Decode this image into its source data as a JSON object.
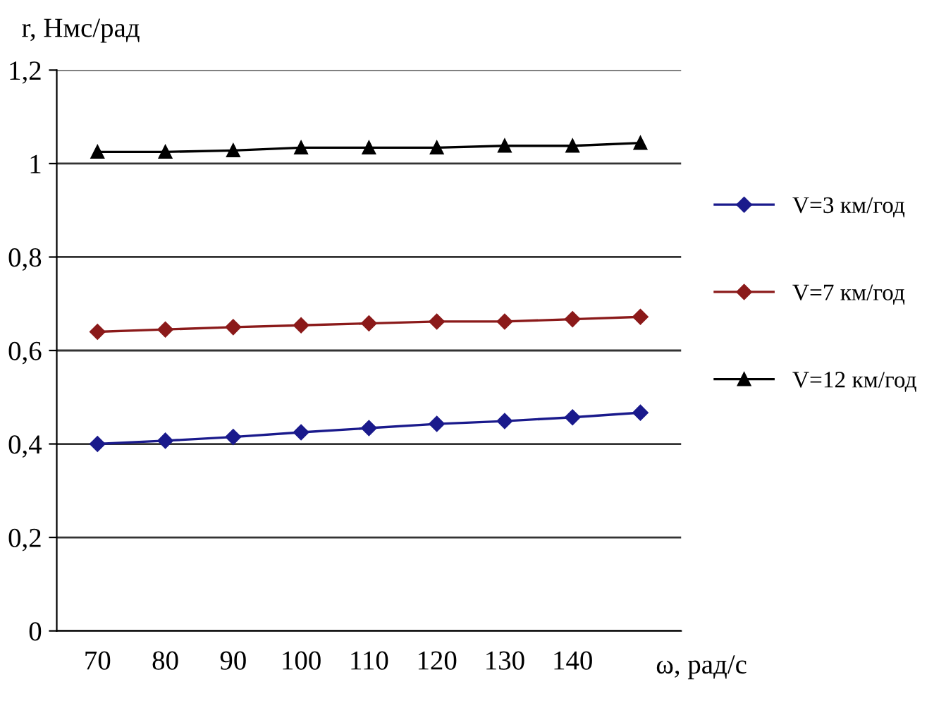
{
  "chart_data": {
    "type": "line",
    "ylabel": "r, Нмс/рад",
    "xlabel": "ω, рад/с",
    "categories": [
      "70",
      "80",
      "90",
      "100",
      "110",
      "120",
      "130",
      "140",
      null
    ],
    "ylim": [
      0,
      1.2
    ],
    "yticks": [
      0,
      {
        "value": 0.2,
        "label": "0,2"
      },
      {
        "value": 0.4,
        "label": "0,4"
      },
      {
        "value": 0.6,
        "label": "0,6"
      },
      {
        "value": 0.8,
        "label": "0,8"
      },
      1,
      {
        "value": 1.2,
        "label": "1,2"
      }
    ],
    "grid": "y",
    "legend": "right",
    "line_style": "solid",
    "series": [
      {
        "name": "V=3 км/год",
        "color": "#1a1a8c",
        "marker": "diamond",
        "values": [
          0.4,
          0.407,
          0.415,
          0.425,
          0.434,
          0.443,
          0.449,
          0.457,
          0.467
        ]
      },
      {
        "name": "V=7 км/год",
        "color": "#8b1a1a",
        "marker": "diamond",
        "values": [
          0.64,
          0.645,
          0.65,
          0.654,
          0.658,
          0.662,
          0.662,
          0.667,
          0.672
        ]
      },
      {
        "name": "V=12 км/год",
        "color": "#000000",
        "marker": "triangle",
        "values": [
          1.025,
          1.025,
          1.028,
          1.034,
          1.034,
          1.034,
          1.038,
          1.038,
          1.044
        ]
      }
    ]
  }
}
